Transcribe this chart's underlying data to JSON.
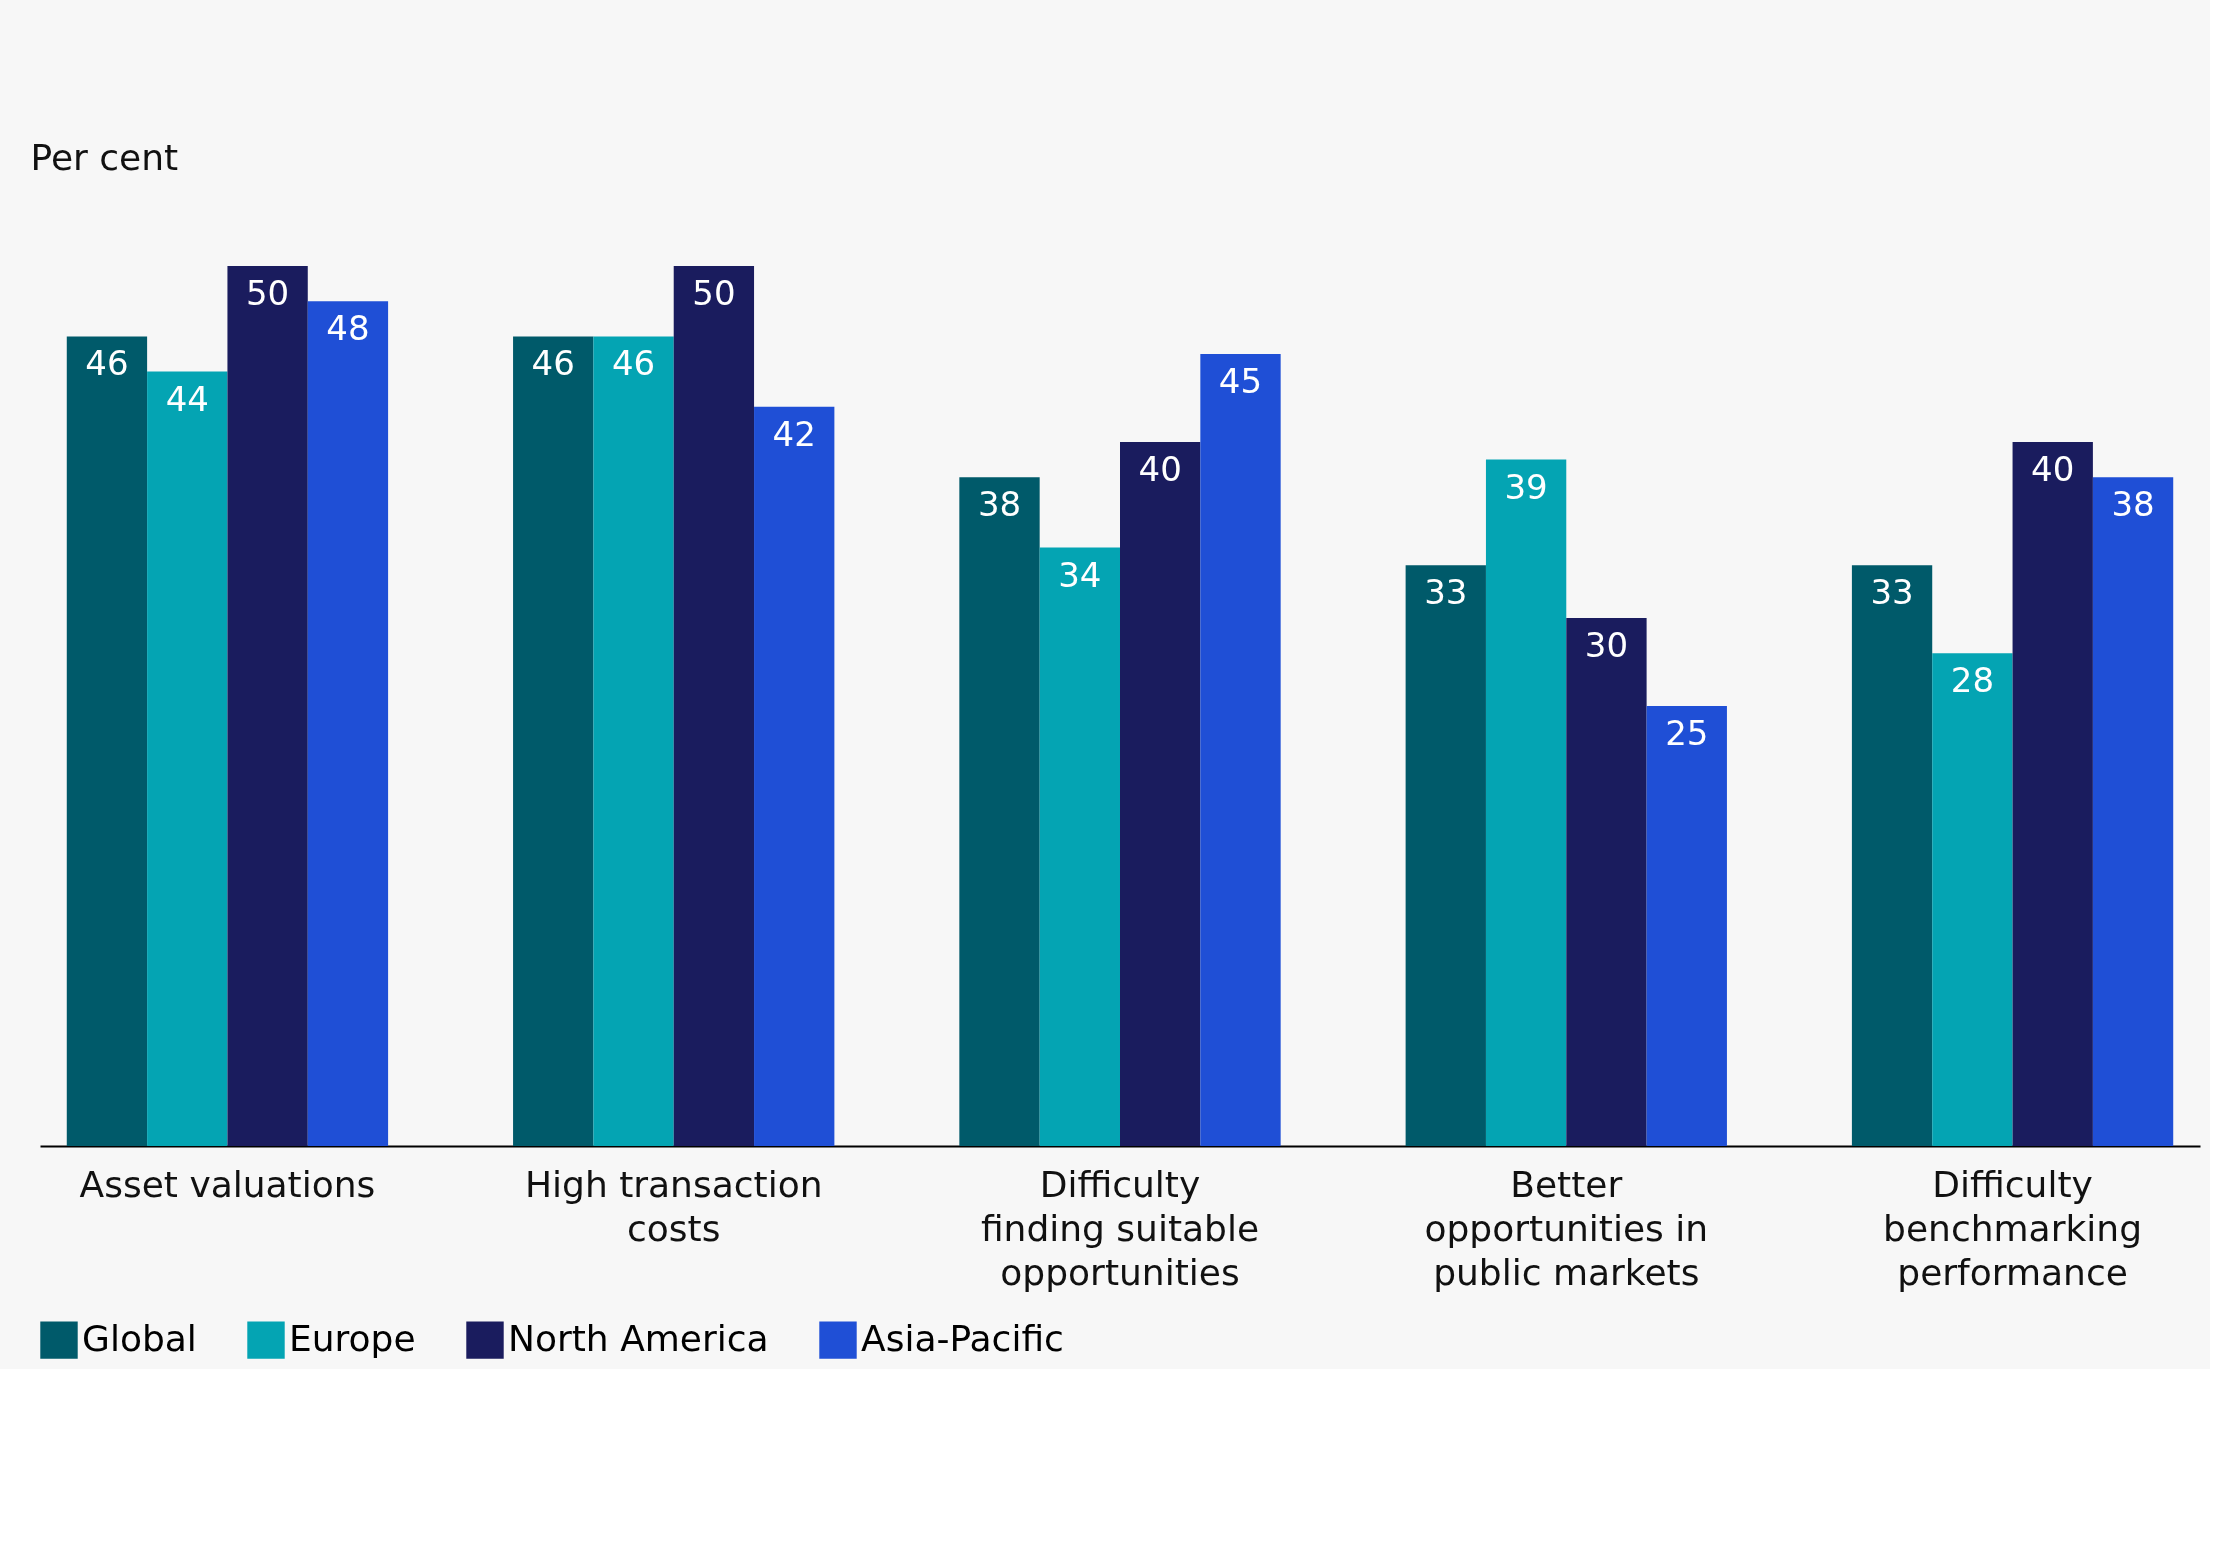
{
  "chart_data": {
    "type": "bar",
    "ylabel": "Per cent",
    "categories": [
      "Asset valuations",
      "High transaction costs",
      "Difficulty finding suitable opportunities",
      "Better opportunities in public markets",
      "Difficulty benchmarking performance"
    ],
    "series": [
      {
        "name": "Global",
        "color": "#005a6a",
        "values": [
          46,
          46,
          38,
          33,
          33
        ]
      },
      {
        "name": "Europe",
        "color": "#04a4b3",
        "values": [
          44,
          46,
          34,
          39,
          28
        ]
      },
      {
        "name": "North America",
        "color": "#1a1c5e",
        "values": [
          50,
          50,
          40,
          30,
          40
        ]
      },
      {
        "name": "Asia-Pacific",
        "color": "#1f4fd6",
        "values": [
          48,
          42,
          45,
          25,
          38
        ]
      }
    ],
    "data_labels": true,
    "grid": false,
    "legend": "bottom",
    "tick_labels": "x"
  }
}
